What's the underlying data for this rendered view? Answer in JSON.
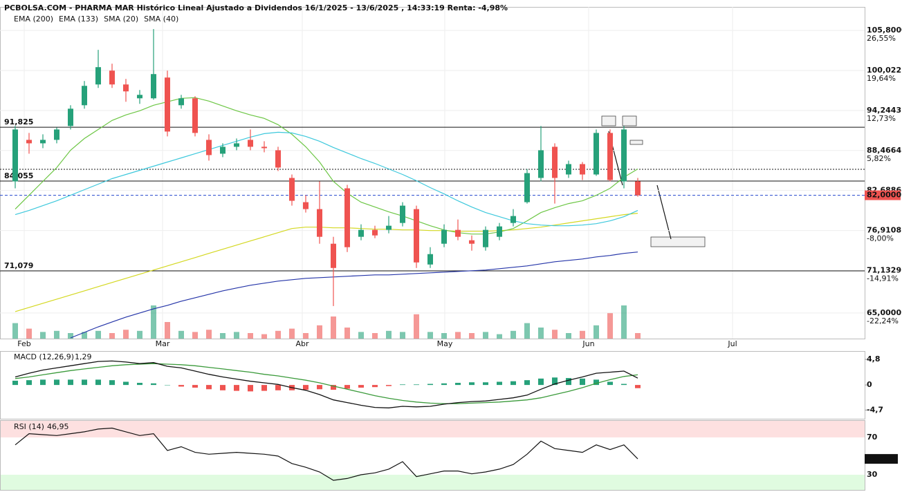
{
  "chart_data": {
    "type": "candlestick",
    "title": "PCBOLSA.COM - PHARMA MAR Histórico Lineal Ajustado a Dividendos 16/1/2025 - 13/6/2025 , 14:33:19 Renta: -4,98%",
    "xlim": [
      -0.5,
      61.5
    ],
    "xticks": [
      {
        "value": 0.65,
        "label": "Feb"
      },
      {
        "value": 10.65,
        "label": "Mar"
      },
      {
        "value": 20.75,
        "label": "Abr"
      },
      {
        "value": 31.05,
        "label": "May"
      },
      {
        "value": 41.45,
        "label": "Jun"
      },
      {
        "value": 51.85,
        "label": "Jul"
      }
    ],
    "ylim": [
      61.3,
      109.0
    ],
    "yticks": [
      {
        "value": 105.8,
        "label": "105,8000"
      },
      {
        "value": 100.0221,
        "label": "100,0221"
      },
      {
        "value": 94.2443,
        "label": "94,2443"
      },
      {
        "value": 88.4664,
        "label": "88,4664"
      },
      {
        "value": 82.6886,
        "label": "82,6886"
      },
      {
        "value": 76.9108,
        "label": "76,9108"
      },
      {
        "value": 71.1329,
        "label": "71,1329"
      },
      {
        "value": 65.0,
        "label": "65,0000"
      }
    ],
    "ytick_pct": [
      "26,55%",
      "19,64%",
      "12,73%",
      "5,82%",
      null,
      "-8,00%",
      "-14,91%",
      "-22,24%"
    ],
    "up_color": "#26a17a",
    "down_color": "#ef5350",
    "open": [
      84,
      90,
      89.5,
      90,
      92,
      95,
      98,
      100,
      98,
      96,
      96,
      99,
      95,
      96,
      90,
      88,
      89,
      90,
      89,
      88.5,
      84.5,
      81,
      80,
      75,
      83,
      76,
      77,
      77,
      78,
      80,
      72,
      75,
      77,
      75.5,
      74.5,
      76,
      78,
      81,
      84.5,
      89,
      85,
      86.5,
      85,
      91,
      84,
      84
    ],
    "high": [
      92,
      91,
      90.8,
      91.8,
      95,
      98.5,
      103,
      101,
      98.8,
      97.2,
      106,
      100,
      96.5,
      96.3,
      90.8,
      89.5,
      90.2,
      91.5,
      89.8,
      89,
      85,
      82,
      84,
      76,
      83.5,
      77.8,
      77.6,
      79,
      81,
      80.5,
      74.5,
      77.8,
      78.5,
      76.2,
      77.5,
      78,
      80,
      85.8,
      92,
      89.5,
      87,
      86.8,
      91.5,
      91.5,
      92,
      84.5
    ],
    "low": [
      83,
      88,
      88.8,
      89.5,
      91.5,
      94.5,
      97.5,
      97.5,
      95.5,
      95.2,
      95.8,
      90.5,
      94.5,
      90.5,
      87,
      87.5,
      88.5,
      88.5,
      88.2,
      85.5,
      80.5,
      79.5,
      75,
      66,
      73.8,
      75.5,
      75.8,
      76.5,
      77.5,
      71.5,
      71.5,
      74.5,
      75.5,
      74,
      74,
      75.5,
      77.5,
      80.8,
      84,
      80.8,
      84.5,
      84.2,
      84.8,
      84,
      83,
      81.8
    ],
    "close": [
      91.5,
      89.5,
      90,
      91.5,
      94.5,
      97.8,
      100.5,
      98,
      97,
      96.5,
      99.5,
      91.2,
      96,
      91,
      87.8,
      89,
      89.5,
      89,
      88.8,
      86,
      81.2,
      80,
      76,
      71.5,
      74.5,
      77,
      76.2,
      77.6,
      80.5,
      72.3,
      73.5,
      77,
      76,
      75,
      77,
      77.5,
      79,
      85.2,
      88.5,
      84.5,
      86.5,
      85,
      91,
      84.2,
      91.5,
      82
    ],
    "vlim": [
      0,
      100
    ],
    "volume": [
      28,
      18,
      12,
      14,
      10,
      12,
      14,
      10,
      16,
      14,
      60,
      30,
      14,
      12,
      16,
      10,
      12,
      10,
      8,
      14,
      18,
      10,
      24,
      40,
      20,
      12,
      10,
      14,
      12,
      44,
      12,
      10,
      12,
      10,
      12,
      8,
      14,
      28,
      20,
      16,
      10,
      14,
      24,
      46,
      60,
      10
    ],
    "lines": [
      {
        "name": "EMA (200)",
        "color": "#2434a8",
        "values": [
          null,
          null,
          null,
          null,
          61.4,
          62.2,
          63,
          63.7,
          64.4,
          65,
          65.6,
          66.1,
          66.7,
          67.2,
          67.7,
          68.2,
          68.6,
          69,
          69.3,
          69.6,
          69.8,
          70,
          70.1,
          70.2,
          70.3,
          70.4,
          70.5,
          70.5,
          70.6,
          70.7,
          70.8,
          70.9,
          71,
          71.1,
          71.2,
          71.4,
          71.6,
          71.8,
          72.1,
          72.4,
          72.6,
          72.8,
          73.1,
          73.3,
          73.6,
          73.8
        ]
      },
      {
        "name": "EMA (133)",
        "color": "#d4d820",
        "values": [
          65.2,
          65.8,
          66.4,
          67,
          67.6,
          68.2,
          68.8,
          69.4,
          70,
          70.6,
          71.2,
          71.8,
          72.4,
          73,
          73.6,
          74.2,
          74.8,
          75.4,
          76,
          76.6,
          77.2,
          77.4,
          77.4,
          77.3,
          77.3,
          77.2,
          77.1,
          77.1,
          77,
          77,
          76.9,
          76.9,
          76.8,
          76.8,
          76.8,
          76.9,
          77,
          77.2,
          77.4,
          77.7,
          78,
          78.3,
          78.6,
          78.9,
          79.2,
          79.4
        ]
      },
      {
        "name": "SMA (20)",
        "color": "#6cc644",
        "values": [
          80,
          82,
          84,
          86,
          88.5,
          90.2,
          91.5,
          92.8,
          93.6,
          94.2,
          95,
          95.5,
          96,
          96.1,
          95.6,
          94.9,
          94.2,
          93.6,
          93.1,
          92.2,
          90.8,
          89,
          86.8,
          84,
          82.3,
          81,
          80.3,
          79.6,
          79,
          78.3,
          77.6,
          77,
          76.6,
          76.4,
          76.4,
          76.7,
          77.2,
          78.3,
          79.5,
          80.2,
          80.8,
          81.2,
          82,
          83,
          84.6,
          85.8
        ]
      },
      {
        "name": "SMA (40)",
        "color": "#3cc8dc",
        "values": [
          79.2,
          79.8,
          80.5,
          81.2,
          82,
          82.8,
          83.6,
          84.4,
          85,
          85.6,
          86.2,
          86.8,
          87.4,
          88,
          88.6,
          89.2,
          89.8,
          90.4,
          90.9,
          91.1,
          91,
          90.5,
          89.8,
          88.9,
          88.1,
          87.3,
          86.6,
          85.8,
          85,
          84.1,
          83.1,
          82.2,
          81.2,
          80.3,
          79.5,
          78.9,
          78.3,
          77.9,
          77.7,
          77.6,
          77.6,
          77.7,
          77.9,
          78.3,
          78.9,
          79.8
        ]
      }
    ],
    "hlines": [
      {
        "value": 91.825,
        "label": "91,825"
      },
      {
        "value": 84.055,
        "label": "84,055"
      },
      {
        "value": 71.079,
        "label": "71,079"
      }
    ],
    "dotted_level": 85.75,
    "last_price": {
      "value": 82.0,
      "label": "82,0000"
    },
    "macd": {
      "label": "MACD (12,26,9)",
      "value_text": "1,29",
      "ylim": [
        -6.2,
        6.1
      ],
      "yticks": [
        {
          "value": 4.8,
          "label": "4,8"
        },
        0,
        {
          "value": -4.7,
          "label": "-4,7"
        }
      ],
      "line_color": "#111111",
      "signal_color": "#3a9a3a",
      "values": [
        1.5,
        2.2,
        2.8,
        3.2,
        3.6,
        4.0,
        4.4,
        4.5,
        4.3,
        4.0,
        4.2,
        3.5,
        3.2,
        2.6,
        2.0,
        1.5,
        1.1,
        0.7,
        0.4,
        0.1,
        -0.5,
        -1.0,
        -1.8,
        -2.8,
        -3.3,
        -3.8,
        -4.2,
        -4.3,
        -4.0,
        -4.1,
        -4.0,
        -3.6,
        -3.3,
        -3.1,
        -3.0,
        -2.7,
        -2.4,
        -1.9,
        -0.8,
        0.2,
        0.9,
        1.5,
        2.2,
        2.4,
        2.6,
        1.29
      ],
      "signal": [
        1.2,
        1.5,
        1.9,
        2.3,
        2.7,
        3.0,
        3.3,
        3.6,
        3.8,
        3.9,
        4.0,
        3.9,
        3.8,
        3.6,
        3.3,
        3.0,
        2.7,
        2.4,
        2.0,
        1.7,
        1.3,
        0.9,
        0.4,
        -0.2,
        -0.8,
        -1.4,
        -2.0,
        -2.5,
        -2.9,
        -3.2,
        -3.4,
        -3.5,
        -3.5,
        -3.4,
        -3.3,
        -3.2,
        -3.0,
        -2.8,
        -2.4,
        -1.8,
        -1.2,
        -0.5,
        0.3,
        1.0,
        1.6,
        1.9
      ],
      "hist": [
        0.8,
        0.9,
        1.0,
        1.0,
        1.0,
        1.0,
        1.0,
        0.9,
        0.6,
        0.4,
        0.3,
        0,
        -0.3,
        -0.5,
        -0.8,
        -1.0,
        -1.1,
        -1.2,
        -1.1,
        -1.0,
        -1.0,
        -0.9,
        -0.8,
        -0.9,
        -0.7,
        -0.5,
        -0.4,
        -0.2,
        0.1,
        0.1,
        0.2,
        0.3,
        0.4,
        0.5,
        0.5,
        0.6,
        0.7,
        0.9,
        1.2,
        1.4,
        1.3,
        1.2,
        1.0,
        0.6,
        0.2,
        -0.6
      ]
    },
    "rsi": {
      "label": "RSI (14)",
      "value_text": "46,95",
      "ylim": [
        13.7,
        87.8
      ],
      "yticks": [
        70,
        30
      ],
      "values": [
        62,
        74,
        73,
        72,
        74,
        76,
        79,
        80,
        76,
        72,
        74,
        56,
        60,
        54,
        52,
        53,
        54,
        53,
        52,
        50,
        42,
        38,
        33,
        24,
        26,
        30,
        32,
        36,
        44,
        28,
        31,
        34,
        34,
        31,
        33,
        36,
        41,
        52,
        66,
        58,
        56,
        54,
        62,
        57,
        62,
        46.955
      ],
      "last": {
        "value": 46.955,
        "label": "46,955"
      }
    }
  }
}
